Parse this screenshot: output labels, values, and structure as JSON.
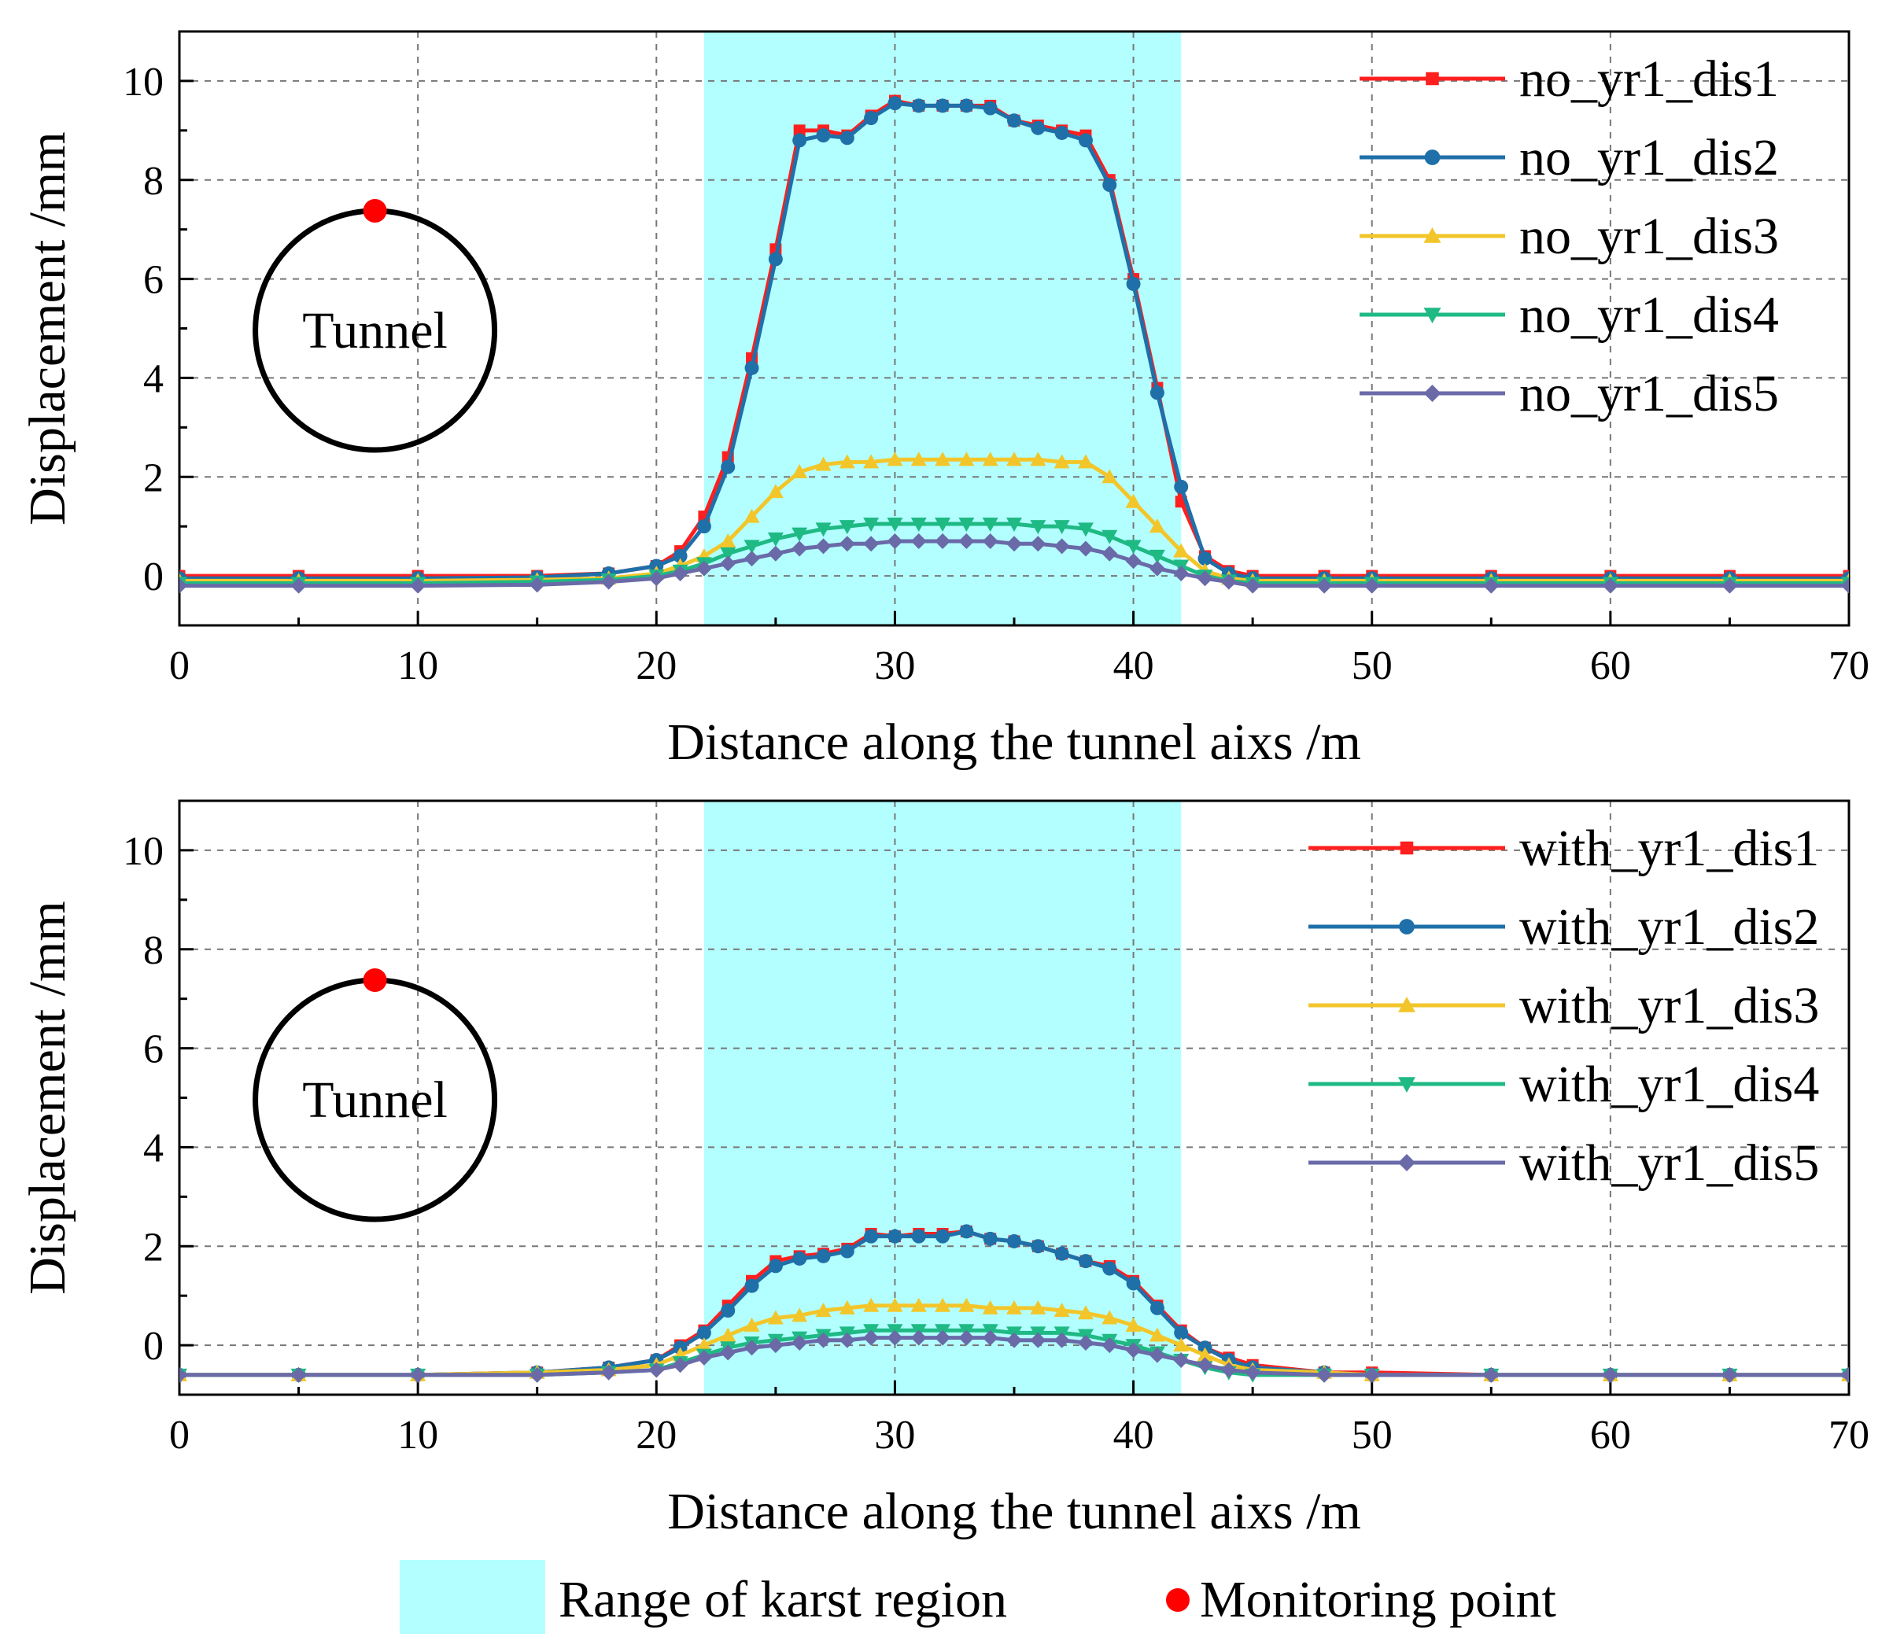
{
  "colors": {
    "karst_fill": "#b3ffff",
    "monitoring_point": "#ff0000",
    "series": [
      "#ff1f1f",
      "#1f6fa8",
      "#f2c62a",
      "#1fb984",
      "#6a6aa8"
    ]
  },
  "markers": [
    "square",
    "circle",
    "triangle-up",
    "triangle-down",
    "diamond"
  ],
  "tunnel_label": "Tunnel",
  "bottom_legend": {
    "karst_label": "Range of karst region",
    "monitoring_label": "Monitoring point"
  },
  "chart_data": [
    {
      "type": "line",
      "xlabel": "Distance along the tunnel aixs /m",
      "ylabel": "Displacement /mm",
      "xlim": [
        0,
        70
      ],
      "ylim": [
        -1,
        11
      ],
      "xticks": [
        "0",
        "10",
        "20",
        "30",
        "40",
        "50",
        "60",
        "70"
      ],
      "yticks": [
        "0",
        "2",
        "4",
        "6",
        "8",
        "10"
      ],
      "grid": true,
      "legend_position": "top-right",
      "shaded_range": [
        22,
        42
      ],
      "x": [
        0,
        5,
        10,
        15,
        18,
        20,
        21,
        22,
        23,
        24,
        25,
        26,
        27,
        28,
        29,
        30,
        31,
        32,
        33,
        34,
        35,
        36,
        37,
        38,
        39,
        40,
        41,
        42,
        43,
        44,
        45,
        48,
        50,
        55,
        60,
        65,
        70
      ],
      "series": [
        {
          "name": "no_yr1_dis1",
          "values": [
            0,
            0,
            0,
            0,
            0.05,
            0.2,
            0.5,
            1.2,
            2.4,
            4.4,
            6.6,
            9.0,
            9.0,
            8.9,
            9.3,
            9.6,
            9.5,
            9.5,
            9.5,
            9.5,
            9.2,
            9.1,
            9.0,
            8.9,
            8.0,
            6.0,
            3.8,
            1.5,
            0.4,
            0.1,
            0,
            0,
            0,
            0,
            0,
            0,
            0
          ]
        },
        {
          "name": "no_yr1_dis2",
          "values": [
            -0.05,
            -0.05,
            -0.05,
            -0.03,
            0.05,
            0.2,
            0.4,
            1.0,
            2.2,
            4.2,
            6.4,
            8.8,
            8.9,
            8.85,
            9.25,
            9.55,
            9.5,
            9.5,
            9.5,
            9.45,
            9.2,
            9.05,
            8.95,
            8.8,
            7.9,
            5.9,
            3.7,
            1.8,
            0.35,
            0.05,
            -0.05,
            -0.05,
            -0.05,
            -0.05,
            -0.05,
            -0.05,
            -0.05
          ]
        },
        {
          "name": "no_yr1_dis3",
          "values": [
            -0.1,
            -0.1,
            -0.1,
            -0.08,
            -0.05,
            0.05,
            0.2,
            0.4,
            0.7,
            1.2,
            1.7,
            2.1,
            2.25,
            2.3,
            2.3,
            2.35,
            2.35,
            2.35,
            2.35,
            2.35,
            2.35,
            2.35,
            2.3,
            2.3,
            2.0,
            1.5,
            1.0,
            0.5,
            0.1,
            -0.05,
            -0.1,
            -0.1,
            -0.1,
            -0.1,
            -0.1,
            -0.1,
            -0.1
          ]
        },
        {
          "name": "no_yr1_dis4",
          "values": [
            -0.15,
            -0.15,
            -0.15,
            -0.12,
            -0.08,
            0,
            0.1,
            0.25,
            0.45,
            0.6,
            0.75,
            0.85,
            0.95,
            1.0,
            1.05,
            1.05,
            1.05,
            1.05,
            1.05,
            1.05,
            1.05,
            1.0,
            1.0,
            0.95,
            0.8,
            0.6,
            0.4,
            0.2,
            0,
            -0.1,
            -0.15,
            -0.15,
            -0.15,
            -0.15,
            -0.15,
            -0.15,
            -0.15
          ]
        },
        {
          "name": "no_yr1_dis5",
          "values": [
            -0.2,
            -0.2,
            -0.2,
            -0.18,
            -0.12,
            -0.05,
            0.05,
            0.15,
            0.25,
            0.35,
            0.45,
            0.55,
            0.6,
            0.65,
            0.65,
            0.7,
            0.7,
            0.7,
            0.7,
            0.7,
            0.65,
            0.65,
            0.6,
            0.55,
            0.45,
            0.3,
            0.15,
            0.05,
            -0.05,
            -0.12,
            -0.2,
            -0.2,
            -0.2,
            -0.2,
            -0.2,
            -0.2,
            -0.2
          ]
        }
      ]
    },
    {
      "type": "line",
      "xlabel": "Distance along the tunnel aixs /m",
      "ylabel": "Displacement /mm",
      "xlim": [
        0,
        70
      ],
      "ylim": [
        -1,
        11
      ],
      "xticks": [
        "0",
        "10",
        "20",
        "30",
        "40",
        "50",
        "60",
        "70"
      ],
      "yticks": [
        "0",
        "2",
        "4",
        "6",
        "8",
        "10"
      ],
      "grid": true,
      "legend_position": "top-right",
      "shaded_range": [
        22,
        42
      ],
      "x": [
        0,
        5,
        10,
        15,
        18,
        20,
        21,
        22,
        23,
        24,
        25,
        26,
        27,
        28,
        29,
        30,
        31,
        32,
        33,
        34,
        35,
        36,
        37,
        38,
        39,
        40,
        41,
        42,
        43,
        44,
        45,
        48,
        50,
        55,
        60,
        65,
        70
      ],
      "series": [
        {
          "name": "with_yr1_dis1",
          "values": [
            -0.6,
            -0.6,
            -0.6,
            -0.55,
            -0.45,
            -0.3,
            0,
            0.3,
            0.8,
            1.3,
            1.7,
            1.8,
            1.85,
            1.95,
            2.25,
            2.2,
            2.25,
            2.25,
            2.3,
            2.15,
            2.1,
            2.0,
            1.85,
            1.7,
            1.6,
            1.3,
            0.8,
            0.3,
            -0.05,
            -0.25,
            -0.4,
            -0.55,
            -0.55,
            -0.6,
            -0.6,
            -0.6,
            -0.6
          ]
        },
        {
          "name": "with_yr1_dis2",
          "values": [
            -0.6,
            -0.6,
            -0.6,
            -0.55,
            -0.45,
            -0.3,
            -0.05,
            0.25,
            0.7,
            1.2,
            1.6,
            1.75,
            1.8,
            1.9,
            2.2,
            2.2,
            2.2,
            2.2,
            2.3,
            2.15,
            2.1,
            2.0,
            1.85,
            1.7,
            1.55,
            1.25,
            0.75,
            0.25,
            -0.05,
            -0.3,
            -0.45,
            -0.55,
            -0.6,
            -0.6,
            -0.6,
            -0.6,
            -0.6
          ]
        },
        {
          "name": "with_yr1_dis3",
          "values": [
            -0.6,
            -0.6,
            -0.6,
            -0.55,
            -0.5,
            -0.4,
            -0.2,
            0,
            0.2,
            0.4,
            0.55,
            0.6,
            0.7,
            0.75,
            0.8,
            0.8,
            0.8,
            0.8,
            0.8,
            0.75,
            0.75,
            0.75,
            0.7,
            0.65,
            0.55,
            0.4,
            0.2,
            0,
            -0.2,
            -0.4,
            -0.5,
            -0.55,
            -0.6,
            -0.6,
            -0.6,
            -0.6,
            -0.6
          ]
        },
        {
          "name": "with_yr1_dis4",
          "values": [
            -0.6,
            -0.6,
            -0.6,
            -0.6,
            -0.55,
            -0.5,
            -0.35,
            -0.2,
            -0.05,
            0.05,
            0.1,
            0.15,
            0.2,
            0.25,
            0.3,
            0.3,
            0.3,
            0.3,
            0.3,
            0.3,
            0.25,
            0.25,
            0.25,
            0.2,
            0.1,
            0,
            -0.15,
            -0.3,
            -0.45,
            -0.55,
            -0.6,
            -0.6,
            -0.6,
            -0.6,
            -0.6,
            -0.6,
            -0.6
          ]
        },
        {
          "name": "with_yr1_dis5",
          "values": [
            -0.6,
            -0.6,
            -0.6,
            -0.6,
            -0.55,
            -0.5,
            -0.4,
            -0.25,
            -0.15,
            -0.05,
            0,
            0.05,
            0.1,
            0.1,
            0.15,
            0.15,
            0.15,
            0.15,
            0.15,
            0.15,
            0.1,
            0.1,
            0.1,
            0.05,
            0,
            -0.1,
            -0.2,
            -0.3,
            -0.4,
            -0.5,
            -0.55,
            -0.6,
            -0.6,
            -0.6,
            -0.6,
            -0.6,
            -0.6
          ]
        }
      ]
    }
  ]
}
